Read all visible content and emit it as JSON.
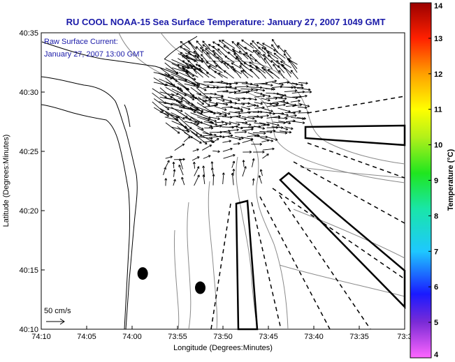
{
  "title": "RU COOL  NOAA-15  Sea Surface Temperature:  January 27, 2007 1049 GMT",
  "annotation": {
    "line1": "Raw Surface Current:",
    "line2": "January 27, 2007 13:00 GMT"
  },
  "scale_label": "50 cm/s",
  "chart_data": {
    "type": "vector-map",
    "title": "RU COOL  NOAA-15  Sea Surface Temperature:  January 27, 2007 1049 GMT",
    "xlabel": "Longitude (Degrees:Minutes)",
    "ylabel": "Latitude (Degrees:Minutes)",
    "x_ticks": [
      "74:10",
      "74:05",
      "74:00",
      "73:55",
      "73:50",
      "73:45",
      "73:40",
      "73:35",
      "73:3"
    ],
    "y_ticks": [
      "40:10",
      "40:15",
      "40:20",
      "40:25",
      "40:30",
      "40:35"
    ],
    "xlim": [
      -74.1667,
      -73.5
    ],
    "ylim": [
      40.1667,
      40.5833
    ],
    "grid": false,
    "colorbar": {
      "label": "Temperature (°C)",
      "min": 4,
      "max": 14,
      "ticks": [
        "4",
        "5",
        "6",
        "7",
        "8",
        "9",
        "10",
        "11",
        "12",
        "13",
        "14"
      ]
    },
    "markers": [
      {
        "lon": -73.9806,
        "lat": 40.245,
        "shape": "filled-ellipse"
      },
      {
        "lon": -73.875,
        "lat": 40.225,
        "shape": "filled-ellipse"
      }
    ],
    "scale_vector_cm_s": 50
  },
  "colors": {
    "title": "#1a1aa8",
    "coast": "#000000",
    "contour": "#8a8a8a",
    "vectors": "#000000"
  }
}
